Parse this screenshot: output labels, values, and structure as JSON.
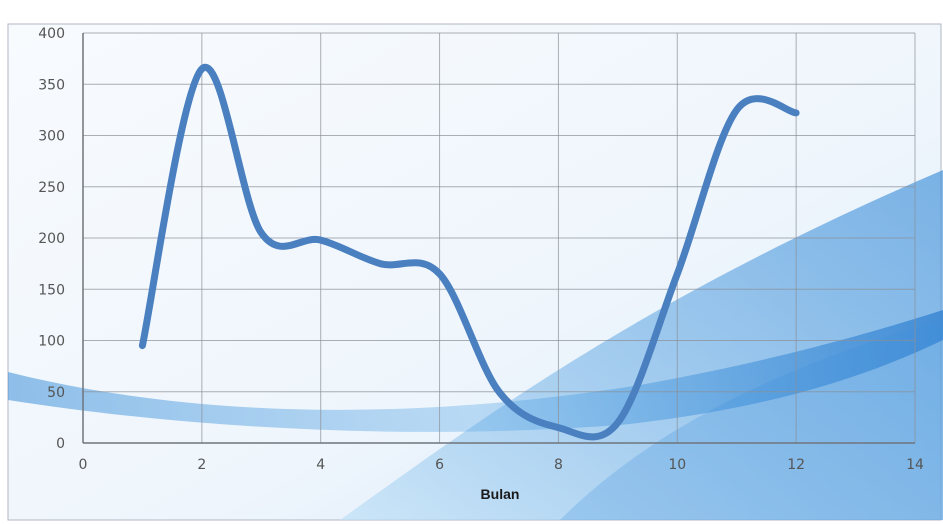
{
  "chart_data": {
    "type": "line",
    "title": "",
    "xlabel": "Bulan",
    "ylabel": "",
    "xlim": [
      0,
      14
    ],
    "ylim": [
      0,
      400
    ],
    "xticks": [
      0,
      2,
      4,
      6,
      8,
      10,
      12,
      14
    ],
    "yticks": [
      0,
      50,
      100,
      150,
      200,
      250,
      300,
      350,
      400
    ],
    "grid": true,
    "legend": "none",
    "series": [
      {
        "x": [
          1,
          2,
          3,
          4,
          5,
          6,
          7,
          8,
          9,
          10,
          11,
          12
        ],
        "values": [
          95,
          365,
          205,
          198,
          175,
          165,
          50,
          15,
          20,
          165,
          325,
          322
        ],
        "color": "#4a7fc0"
      }
    ]
  }
}
